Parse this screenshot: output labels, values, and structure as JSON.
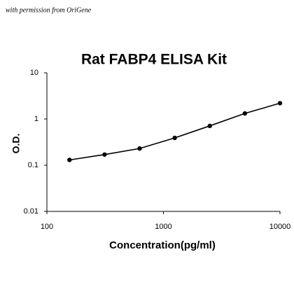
{
  "note_text": "with permission from OriGene",
  "chart_data": {
    "type": "scatter",
    "title": "Rat FABP4 ELISA Kit",
    "x_label": "Concentration(pg/ml)",
    "y_label": "O.D.",
    "x": [
      156.25,
      312.5,
      625,
      1250,
      2500,
      5000,
      10000
    ],
    "values": [
      0.13,
      0.17,
      0.23,
      0.39,
      0.71,
      1.32,
      2.2
    ],
    "color": "#000000",
    "line": true,
    "xscale": "log",
    "yscale": "log",
    "xlim": [
      100,
      10000
    ],
    "ylim": [
      0.01,
      10
    ],
    "xticks": [
      100,
      1000,
      10000
    ],
    "yticks": [
      0.01,
      0.1,
      1,
      10
    ]
  }
}
